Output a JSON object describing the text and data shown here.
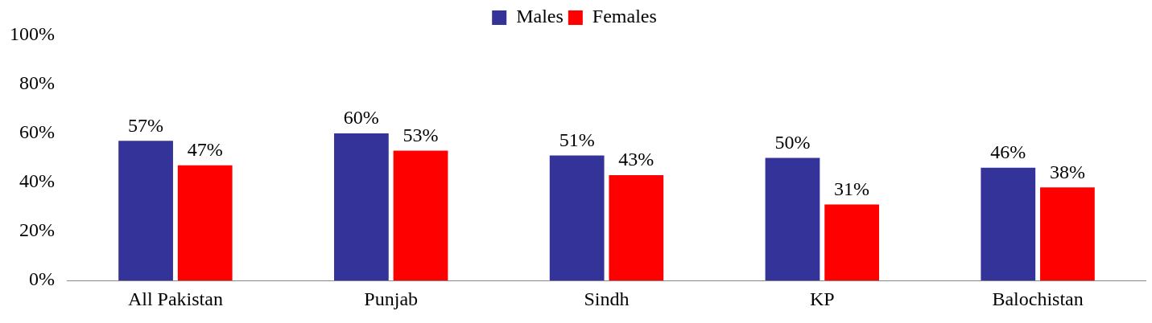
{
  "chart_data": {
    "type": "bar",
    "categories": [
      "All Pakistan",
      "Punjab",
      "Sindh",
      "KP",
      "Balochistan"
    ],
    "series": [
      {
        "name": "Males",
        "color": "#333399",
        "values": [
          57,
          60,
          51,
          50,
          46
        ],
        "value_labels": [
          "57%",
          "60%",
          "51%",
          "50%",
          "46%"
        ]
      },
      {
        "name": "Females",
        "color": "#ff0000",
        "values": [
          47,
          53,
          43,
          31,
          38
        ],
        "value_labels": [
          "47%",
          "53%",
          "43%",
          "31%",
          "38%"
        ]
      }
    ],
    "ylim": [
      0,
      100
    ],
    "yticks": [
      {
        "value": 0,
        "label": "0%"
      },
      {
        "value": 20,
        "label": "20%"
      },
      {
        "value": 40,
        "label": "40%"
      },
      {
        "value": 60,
        "label": "60%"
      },
      {
        "value": 80,
        "label": "80%"
      },
      {
        "value": 100,
        "label": "100%"
      }
    ],
    "grid": false,
    "legend": "top"
  }
}
